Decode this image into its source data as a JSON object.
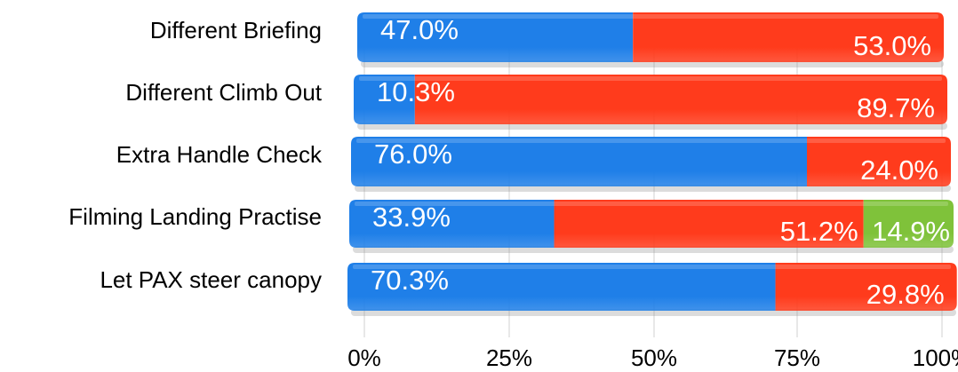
{
  "chart_data": {
    "type": "bar",
    "orientation": "horizontal",
    "stacked": true,
    "percent": true,
    "categories": [
      "Different Briefing",
      "Different Climb Out",
      "Extra Handle Check",
      "Filming Landing Practise",
      "Let PAX steer canopy"
    ],
    "series": [
      {
        "color": "#1f7fe8",
        "values": [
          47.0,
          10.3,
          76.0,
          33.9,
          70.3
        ]
      },
      {
        "color": "#ff3b1c",
        "values": [
          53.0,
          89.7,
          24.0,
          51.2,
          29.8
        ]
      },
      {
        "color": "#7fc23a",
        "values": [
          0,
          0,
          0,
          14.9,
          0
        ]
      }
    ],
    "data_labels": [
      [
        "47.0%",
        "10.3%",
        "76.0%",
        "33.9%",
        "70.3%"
      ],
      [
        "53.0%",
        "89.7%",
        "24.0%",
        "51.2%",
        "29.8%"
      ],
      [
        "",
        "",
        "",
        "14.9%",
        ""
      ]
    ],
    "x_ticks": [
      "0%",
      "25%",
      "50%",
      "75%",
      "100%"
    ],
    "xlim": [
      0,
      100
    ],
    "grid": true,
    "legend": "none",
    "style": "3d-perspective"
  }
}
